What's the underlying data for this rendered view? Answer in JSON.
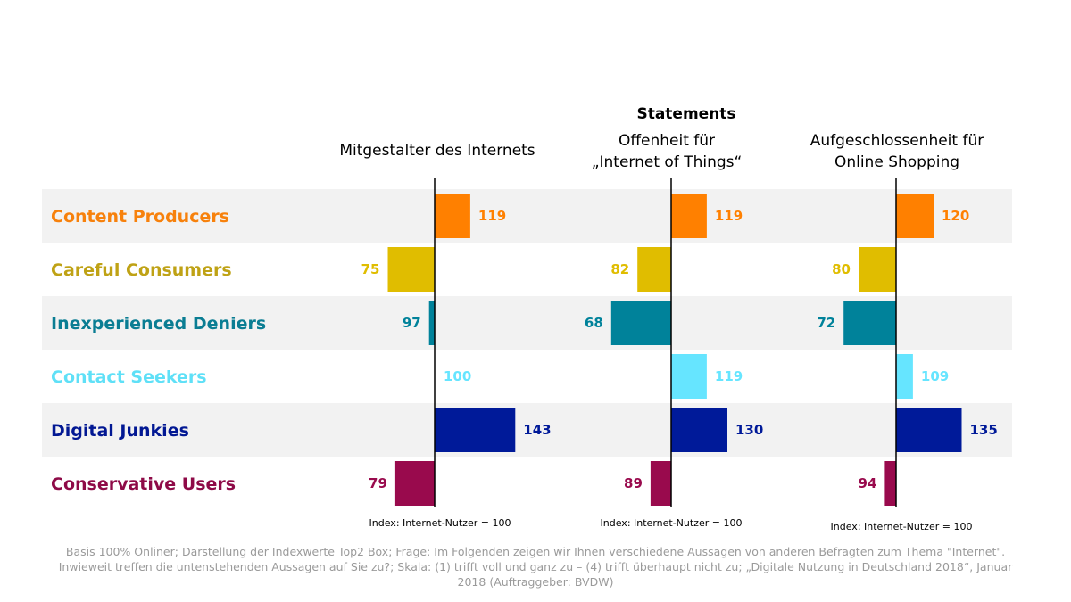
{
  "chart_data": {
    "type": "bar",
    "orientation": "horizontal",
    "title": "Statements",
    "baseline": 100,
    "categories": [
      "Content Producers",
      "Careful Consumers",
      "Inexperienced Deniers",
      "Contact Seekers",
      "Digital Junkies",
      "Conservative Users"
    ],
    "category_colors": [
      "#F7810C",
      "#BFA215",
      "#0A7D93",
      "#5FE0F7",
      "#021893",
      "#8E0A47"
    ],
    "bar_colors": [
      "#FF8000",
      "#E0BD00",
      "#00829A",
      "#66E5FF",
      "#001A99",
      "#990A4D"
    ],
    "series": [
      {
        "name": "Mitgestalter des Internets",
        "name_lines": [
          "Mitgestalter des Internets"
        ],
        "values": [
          119,
          75,
          97,
          100,
          143,
          79
        ],
        "index_note": "Index: Internet-Nutzer = 100"
      },
      {
        "name": "Offenheit für „Internet of Things“",
        "name_lines": [
          "Offenheit für",
          "„Internet of Things“"
        ],
        "values": [
          119,
          82,
          68,
          119,
          130,
          89
        ],
        "index_note": "Index: Internet-Nutzer = 100"
      },
      {
        "name": "Aufgeschlossenheit für Online Shopping",
        "name_lines": [
          "Aufgeschlossenheit für",
          "Online Shopping"
        ],
        "values": [
          120,
          80,
          72,
          109,
          135,
          94
        ],
        "index_note": "Index: Internet-Nutzer = 100"
      }
    ]
  },
  "footnote": "Basis 100% Onliner; Darstellung der Indexwerte Top2 Box; Frage: Im Folgenden zeigen wir Ihnen verschiedene Aussagen von anderen Befragten zum Thema \"Internet\". Inwieweit treffen die untenstehenden Aussagen auf Sie zu?; Skala: (1) trifft voll und ganz zu – (4) trifft überhaupt nicht zu; „Digitale Nutzung in Deutschland 2018“, Januar 2018 (Auftraggeber: BVDW)"
}
